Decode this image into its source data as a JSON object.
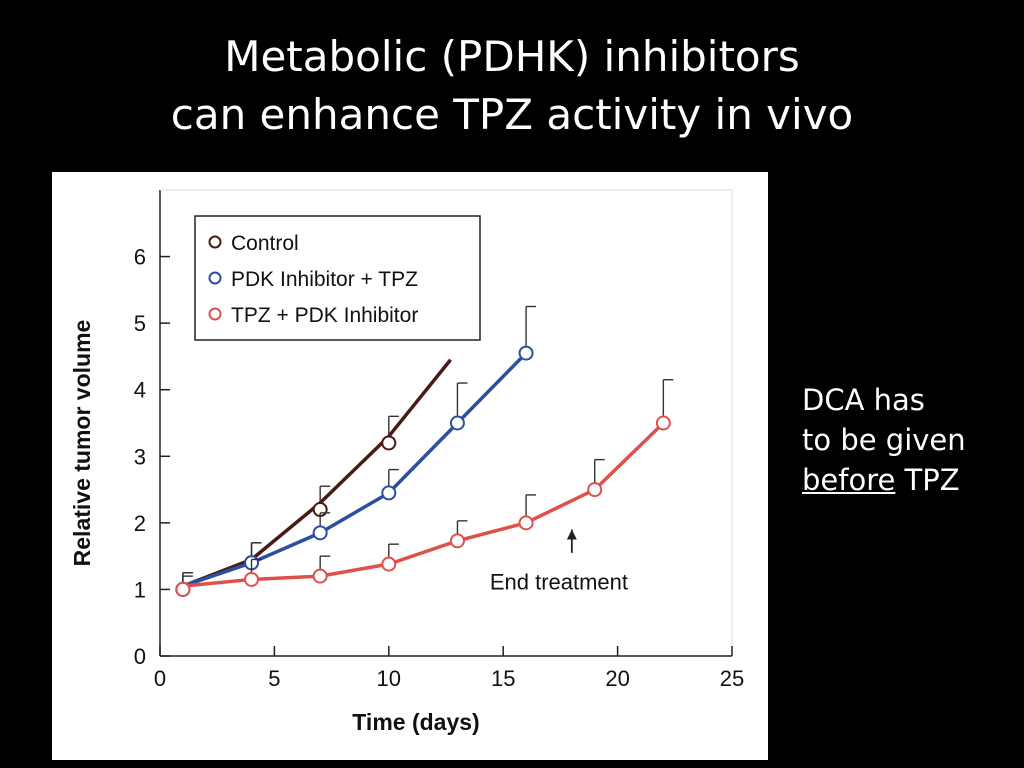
{
  "slide": {
    "title_line1": "Metabolic (PDHK) inhibitors",
    "title_line2": "can enhance TPZ activity in vivo",
    "note_line1": "DCA has",
    "note_line2": "to be given",
    "note_line3_underlined": "before",
    "note_line3_rest": " TPZ"
  },
  "chart_data": {
    "type": "line",
    "xlabel": "Time (days)",
    "ylabel": "Relative tumor volume",
    "xlim": [
      0,
      25
    ],
    "ylim": [
      0,
      7
    ],
    "xticks": [
      0,
      5,
      10,
      15,
      20,
      25
    ],
    "yticks": [
      0,
      1,
      2,
      3,
      4,
      5,
      6
    ],
    "grid": false,
    "legend_position": "top-left",
    "annotation": {
      "text": "End treatment",
      "x": 18,
      "y": 1.9
    },
    "series": [
      {
        "name": "Control",
        "color": "#4a1a14",
        "x": [
          1,
          4,
          7,
          10
        ],
        "y": [
          1.0,
          1.4,
          2.2,
          3.2
        ],
        "err": [
          0.25,
          0.3,
          0.35,
          0.4
        ],
        "line_x": [
          1,
          4,
          7,
          10,
          12.7
        ],
        "line_y": [
          1.05,
          1.45,
          2.3,
          3.3,
          4.45
        ]
      },
      {
        "name": "PDK Inhibitor + TPZ",
        "color": "#2e4fa0",
        "x": [
          1,
          4,
          7,
          10,
          13,
          16
        ],
        "y": [
          1.0,
          1.4,
          1.85,
          2.45,
          3.5,
          4.55
        ],
        "err": [
          0.25,
          0.3,
          0.3,
          0.35,
          0.6,
          0.7
        ],
        "line_x": [
          1,
          4,
          7,
          10,
          13,
          16
        ],
        "line_y": [
          1.05,
          1.4,
          1.85,
          2.45,
          3.5,
          4.55
        ]
      },
      {
        "name": "TPZ + PDK Inhibitor",
        "color": "#e0504a",
        "x": [
          1,
          4,
          7,
          10,
          13,
          16,
          19,
          22
        ],
        "y": [
          1.0,
          1.15,
          1.2,
          1.38,
          1.73,
          2.0,
          2.5,
          3.5
        ],
        "err": [
          0.2,
          0.3,
          0.3,
          0.3,
          0.3,
          0.42,
          0.45,
          0.65
        ],
        "line_x": [
          1,
          4,
          7,
          10,
          13,
          16,
          19,
          22
        ],
        "line_y": [
          1.05,
          1.15,
          1.2,
          1.38,
          1.73,
          2.0,
          2.5,
          3.5
        ]
      }
    ]
  }
}
